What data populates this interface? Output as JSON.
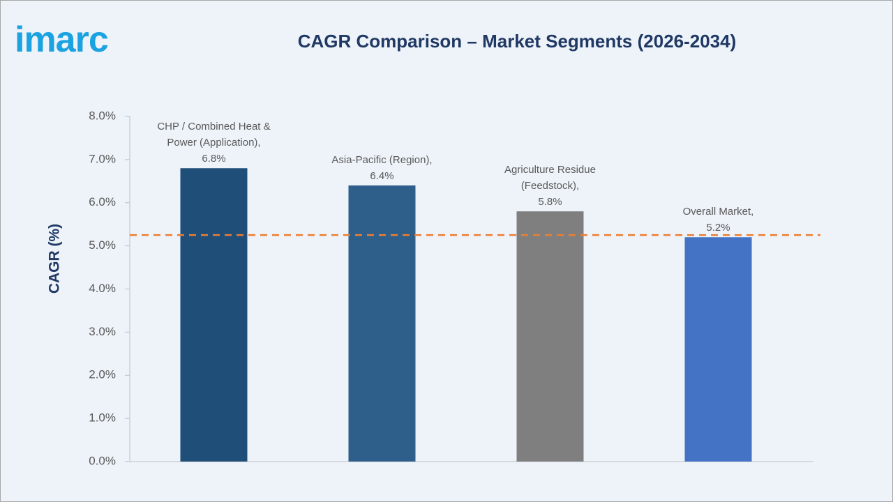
{
  "logo": "imarc",
  "chart_data": {
    "type": "bar",
    "title": "CAGR Comparison – Market Segments (2026-2034)",
    "y_label": "CAGR (%)",
    "categories": [
      "CHP / Combined Heat & Power (Application),",
      "Asia-Pacific (Region),",
      "Agriculture Residue (Feedstock),",
      "Overall Market,"
    ],
    "values": [
      6.8,
      6.4,
      5.8,
      5.2
    ],
    "value_labels": [
      "6.8%",
      "6.4%",
      "5.8%",
      "5.2%"
    ],
    "colors": [
      "#1f4e79",
      "#2e5f8a",
      "#7f7f7f",
      "#4472c4"
    ],
    "ylim": [
      0,
      8
    ],
    "yticks": [
      {
        "value": 0,
        "label": "0.0%"
      },
      {
        "value": 1,
        "label": "1.0%"
      },
      {
        "value": 2,
        "label": "2.0%"
      },
      {
        "value": 3,
        "label": "3.0%"
      },
      {
        "value": 4,
        "label": "4.0%"
      },
      {
        "value": 5,
        "label": "5.0%"
      },
      {
        "value": 6,
        "label": "6.0%"
      },
      {
        "value": 7,
        "label": "7.0%"
      },
      {
        "value": 8,
        "label": "8.0%"
      }
    ],
    "reference_line": {
      "value": 5.25,
      "color": "#ed7d31"
    },
    "grid": false
  }
}
